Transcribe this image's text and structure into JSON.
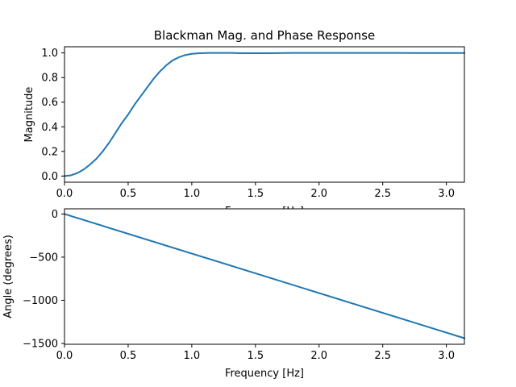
{
  "chart_data": [
    {
      "type": "line",
      "title": "Blackman Mag. and Phase Response",
      "xlabel": "Frequency [Hz]",
      "ylabel": "Magnitude",
      "xlim": [
        0.0,
        3.14159
      ],
      "ylim": [
        -0.05,
        1.05
      ],
      "xticks": [
        0.0,
        0.5,
        1.0,
        1.5,
        2.0,
        2.5,
        3.0
      ],
      "xtick_labels": [
        "0.0",
        "0.5",
        "1.0",
        "1.5",
        "2.0",
        "2.5",
        "3.0"
      ],
      "yticks": [
        0.0,
        0.2,
        0.4,
        0.6,
        0.8,
        1.0
      ],
      "ytick_labels": [
        "0.0",
        "0.2",
        "0.4",
        "0.6",
        "0.8",
        "1.0"
      ],
      "grid": false,
      "color": "#1f77b4",
      "series": [
        {
          "x": [
            0.0,
            0.05,
            0.1,
            0.15,
            0.2,
            0.25,
            0.3,
            0.35,
            0.4,
            0.45,
            0.5,
            0.55,
            0.6,
            0.65,
            0.7,
            0.75,
            0.8,
            0.85,
            0.9,
            0.95,
            1.0,
            1.05,
            1.1,
            1.15,
            1.2,
            1.3,
            1.4,
            1.5,
            1.6,
            1.8,
            2.0,
            2.2,
            2.4,
            2.6,
            2.8,
            3.0,
            3.14159
          ],
          "y": [
            0.0,
            0.006,
            0.024,
            0.053,
            0.093,
            0.14,
            0.2,
            0.27,
            0.35,
            0.43,
            0.5,
            0.58,
            0.65,
            0.72,
            0.79,
            0.85,
            0.9,
            0.94,
            0.965,
            0.983,
            0.993,
            0.997,
            0.999,
            1.0,
            1.0,
            1.0,
            0.998,
            0.998,
            0.998,
            1.0,
            1.0,
            1.0,
            1.0,
            1.0,
            0.999,
            0.999,
            0.999
          ]
        }
      ]
    },
    {
      "type": "line",
      "title": "",
      "xlabel": "Frequency [Hz]",
      "ylabel": "Angle (degrees)",
      "xlim": [
        0.0,
        3.14159
      ],
      "ylim": [
        -1510,
        60
      ],
      "xticks": [
        0.0,
        0.5,
        1.0,
        1.5,
        2.0,
        2.5,
        3.0
      ],
      "xtick_labels": [
        "0.0",
        "0.5",
        "1.0",
        "1.5",
        "2.0",
        "2.5",
        "3.0"
      ],
      "yticks": [
        0,
        -500,
        -1000,
        -1500
      ],
      "ytick_labels": [
        "0",
        "−500",
        "−1000",
        "−1500"
      ],
      "grid": false,
      "color": "#1f77b4",
      "series": [
        {
          "x": [
            0.0,
            3.14159
          ],
          "y": [
            0,
            -1440
          ]
        }
      ]
    }
  ]
}
